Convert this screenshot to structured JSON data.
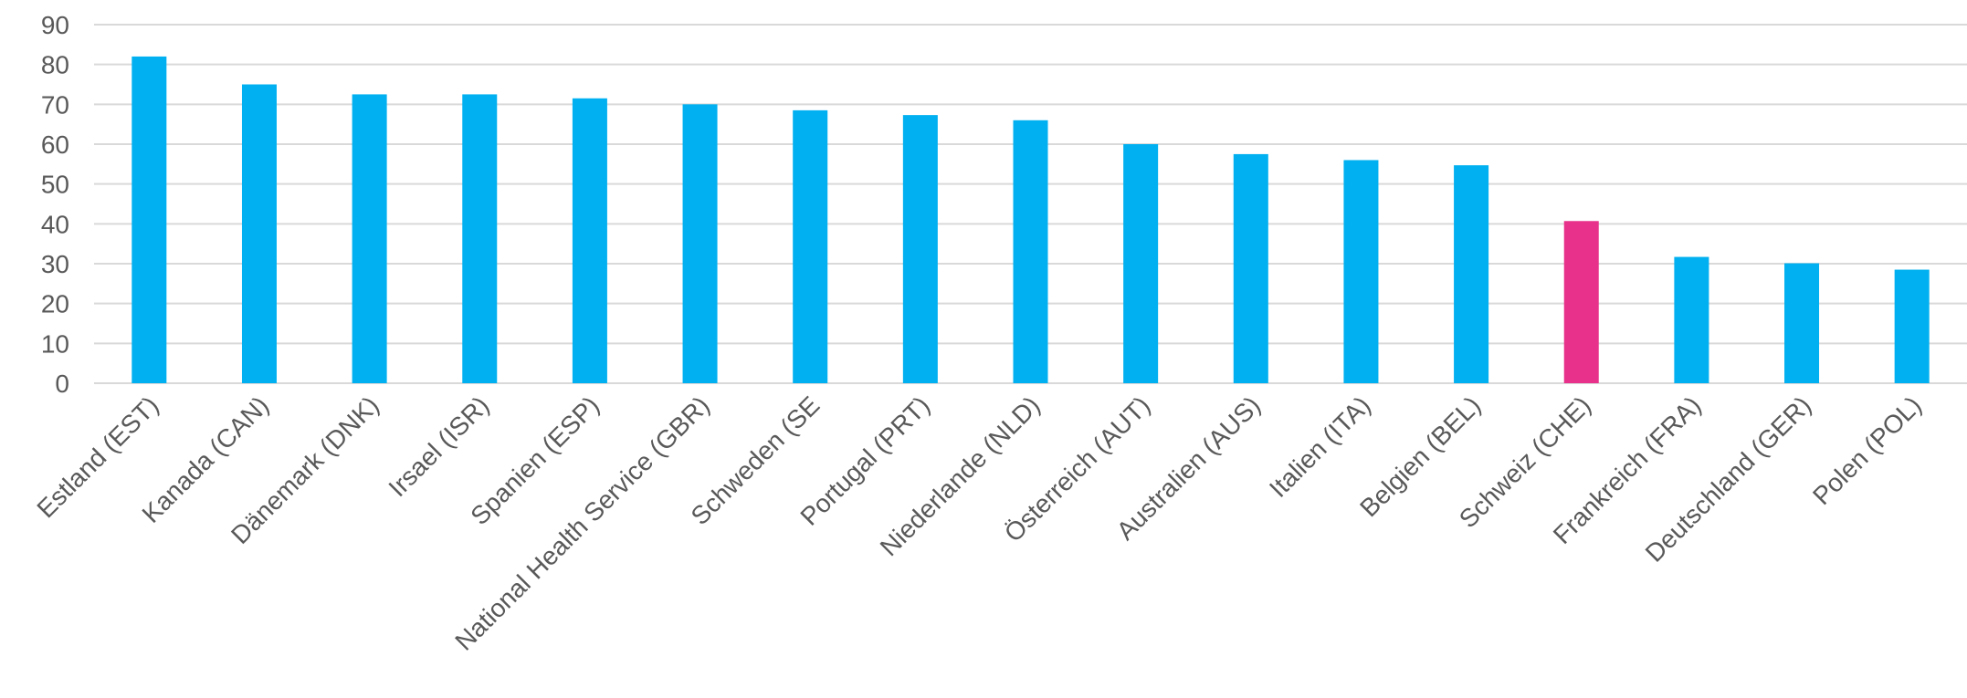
{
  "chart_data": {
    "type": "bar",
    "title": "",
    "xlabel": "",
    "ylabel": "",
    "ylim": [
      0,
      90
    ],
    "yticks": [
      0,
      10,
      20,
      30,
      40,
      50,
      60,
      70,
      80,
      90
    ],
    "grid": true,
    "categories": [
      "Estland (EST)",
      "Kanada (CAN)",
      "Dänemark (DNK)",
      "Irsael (ISR)",
      "Spanien (ESP)",
      "National Health Service (GBR)",
      "Schweden (SE",
      "Portugal (PRT)",
      "Niederlande (NLD)",
      "Österreich (AUT)",
      "Australien (AUS)",
      "Italien (ITA)",
      "Belgien (BEL)",
      "Schweiz (CHE)",
      "Frankreich (FRA)",
      "Deutschland (GER)",
      "Polen (POL)"
    ],
    "values": [
      82,
      75,
      72.5,
      72.5,
      71.5,
      70,
      68.5,
      67.3,
      66,
      60,
      57.5,
      56,
      54.7,
      40.7,
      31.7,
      30.1,
      28.5
    ],
    "colors": {
      "default": "#00B0F0",
      "highlight": "#E8318A",
      "highlight_category": "Schweiz (CHE)",
      "grid": "#D9D9D9",
      "axis_text": "#595959"
    }
  }
}
